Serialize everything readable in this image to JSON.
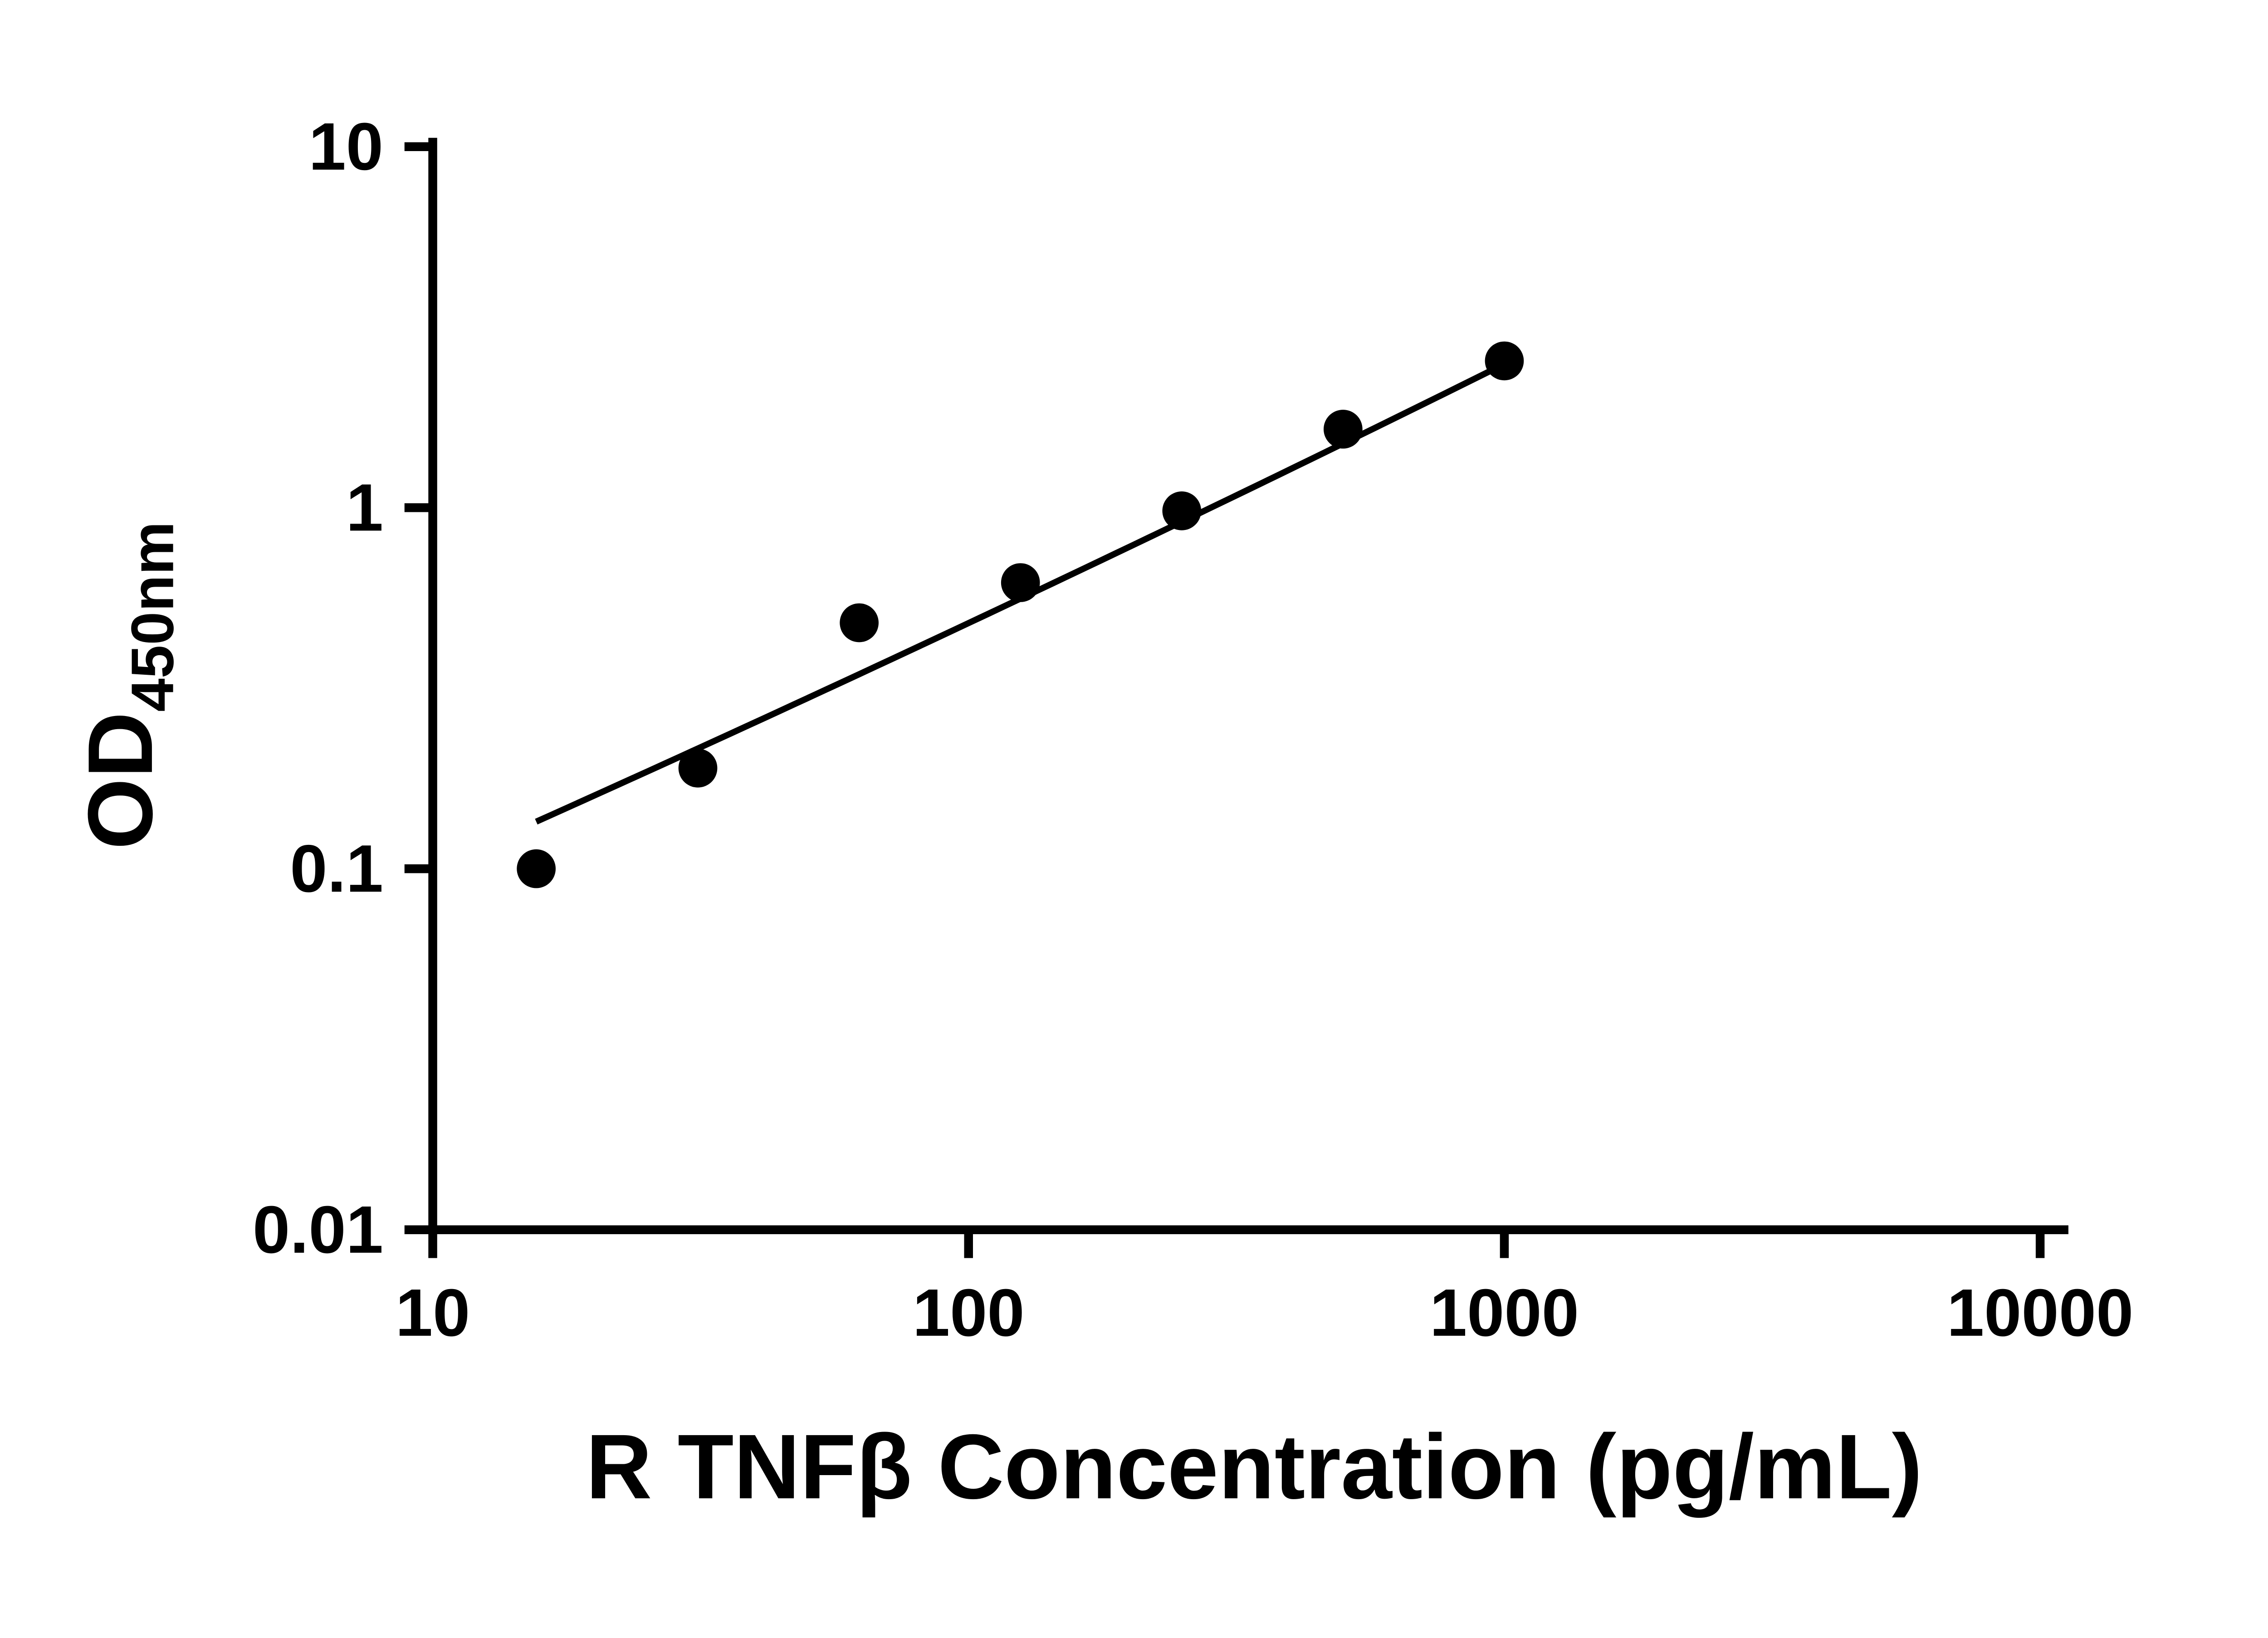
{
  "chart_data": {
    "type": "scatter",
    "title": "",
    "xlabel": "R TNFβ Concentration (pg/mL)",
    "ylabel_main": "OD",
    "ylabel_sub": "450nm",
    "x_scale": "log10",
    "y_scale": "log10",
    "xlim": [
      10,
      10000
    ],
    "ylim": [
      0.01,
      10
    ],
    "x_ticks": [
      10,
      100,
      1000,
      10000
    ],
    "x_tick_labels": [
      "10",
      "100",
      "1000",
      "10000"
    ],
    "y_ticks": [
      0.01,
      0.1,
      1,
      10
    ],
    "y_tick_labels": [
      "0.01",
      "0.1",
      "1",
      "10"
    ],
    "grid": "off",
    "legend": "none",
    "points": [
      {
        "x": 15.6,
        "y": 0.1
      },
      {
        "x": 31.25,
        "y": 0.19
      },
      {
        "x": 62.5,
        "y": 0.48
      },
      {
        "x": 125,
        "y": 0.62
      },
      {
        "x": 250,
        "y": 0.98
      },
      {
        "x": 500,
        "y": 1.65
      },
      {
        "x": 1000,
        "y": 2.55
      }
    ],
    "fit_line_anchors": [
      {
        "x": 15.6,
        "y": 0.135
      },
      {
        "x": 125,
        "y": 0.56
      },
      {
        "x": 1000,
        "y": 2.5
      }
    ],
    "colors": {
      "points": "#000000",
      "line": "#000000",
      "axis": "#000000",
      "background": "#ffffff"
    }
  }
}
